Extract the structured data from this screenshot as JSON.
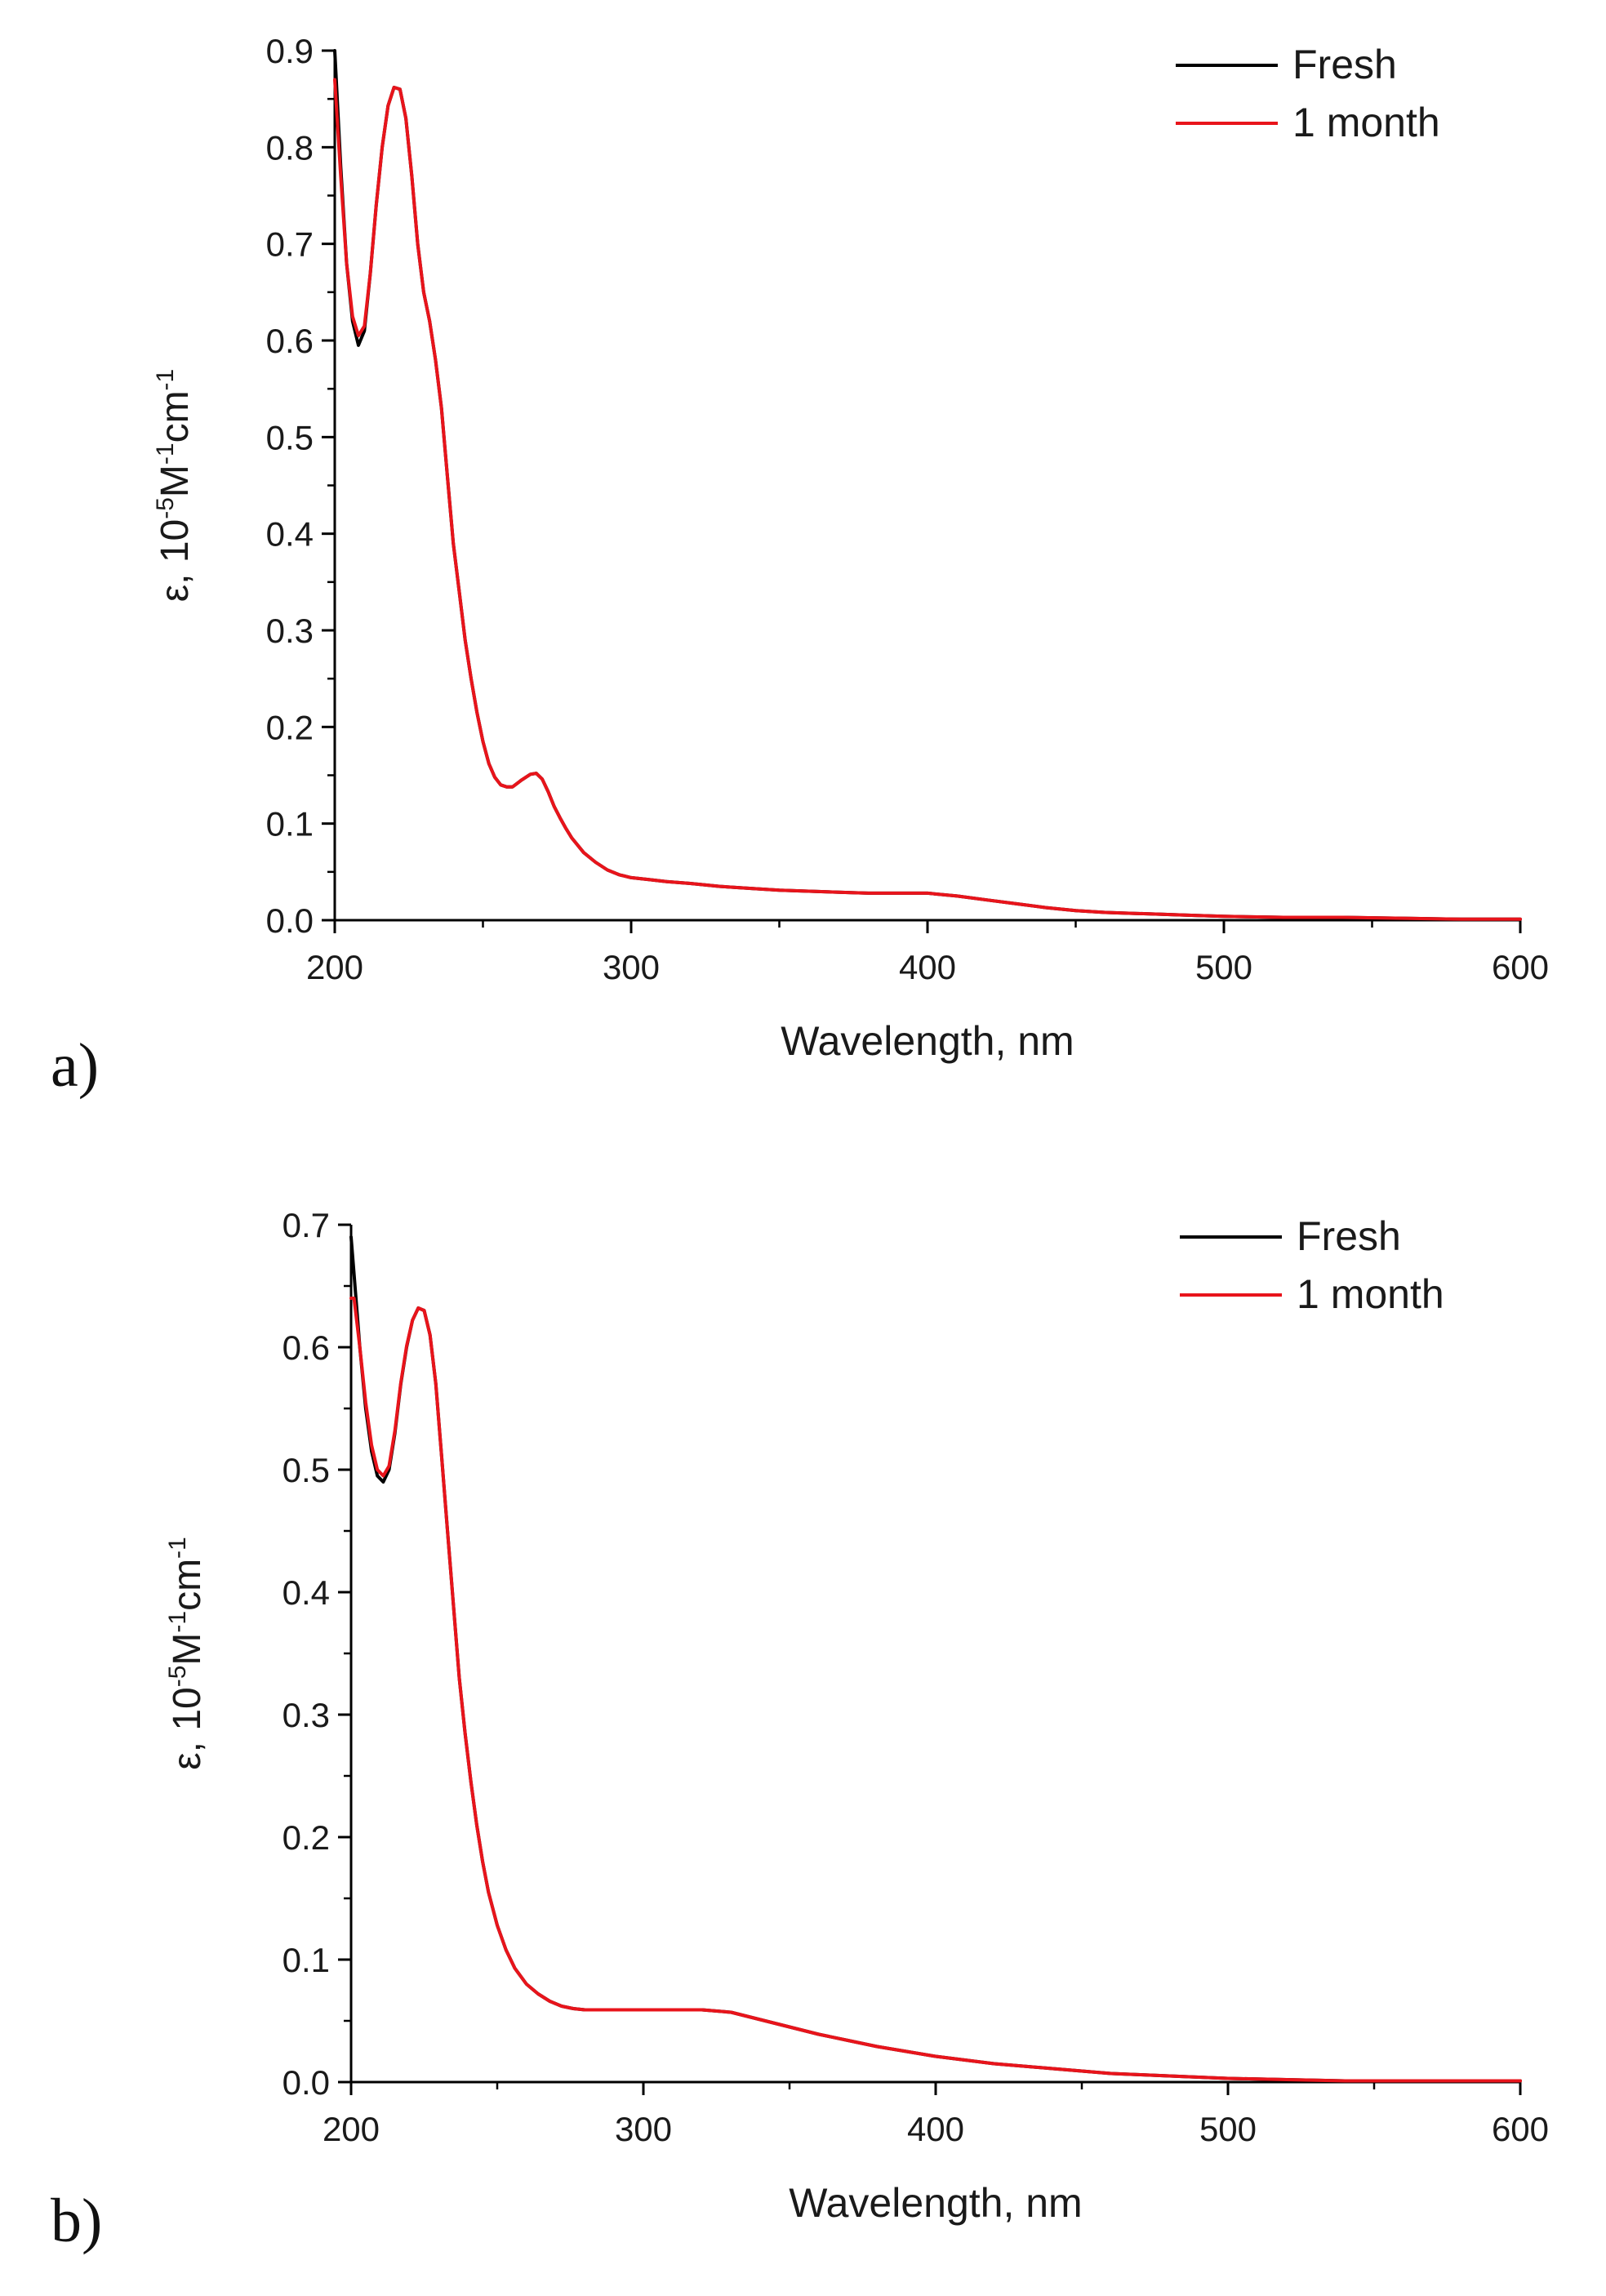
{
  "chart_data": [
    {
      "type": "line",
      "panel_label": "a)",
      "xlabel": "Wavelength, nm",
      "ylabel": {
        "prefix": "ε, 10",
        "exp1": "-5",
        "mid": "M",
        "exp2": "-1",
        "mid2": "cm",
        "exp3": "-1"
      },
      "xlim": [
        200,
        600
      ],
      "ylim": [
        0,
        0.9
      ],
      "xticks": [
        200,
        300,
        400,
        500,
        600
      ],
      "yticks": [
        "0.0",
        "0.1",
        "0.2",
        "0.3",
        "0.4",
        "0.5",
        "0.6",
        "0.7",
        "0.8",
        "0.9"
      ],
      "legend_position": "top-right",
      "series": [
        {
          "name": "Fresh",
          "color": "#000000",
          "x": [
            200,
            202,
            204,
            206,
            208,
            210,
            212,
            214,
            216,
            218,
            220,
            222,
            224,
            226,
            228,
            230,
            232,
            234,
            236,
            238,
            240,
            242,
            244,
            246,
            248,
            250,
            252,
            254,
            256,
            258,
            260,
            263,
            266,
            268,
            270,
            272,
            274,
            276,
            278,
            280,
            284,
            288,
            292,
            296,
            300,
            306,
            312,
            320,
            330,
            340,
            350,
            360,
            370,
            380,
            390,
            400,
            410,
            420,
            430,
            440,
            450,
            460,
            470,
            480,
            490,
            500,
            520,
            540,
            560,
            580,
            600
          ],
          "y": [
            0.9,
            0.78,
            0.68,
            0.62,
            0.595,
            0.61,
            0.67,
            0.74,
            0.8,
            0.843,
            0.862,
            0.86,
            0.83,
            0.77,
            0.7,
            0.65,
            0.62,
            0.58,
            0.53,
            0.46,
            0.39,
            0.34,
            0.29,
            0.25,
            0.215,
            0.185,
            0.162,
            0.148,
            0.14,
            0.138,
            0.138,
            0.145,
            0.151,
            0.152,
            0.146,
            0.133,
            0.118,
            0.106,
            0.095,
            0.085,
            0.07,
            0.06,
            0.052,
            0.047,
            0.044,
            0.042,
            0.04,
            0.038,
            0.035,
            0.033,
            0.031,
            0.03,
            0.029,
            0.028,
            0.028,
            0.028,
            0.025,
            0.021,
            0.017,
            0.013,
            0.01,
            0.008,
            0.007,
            0.006,
            0.005,
            0.004,
            0.003,
            0.003,
            0.002,
            0.001,
            0.001
          ]
        },
        {
          "name": "1 month",
          "color": "#e8141b",
          "x": [
            200,
            202,
            204,
            206,
            208,
            210,
            212,
            214,
            216,
            218,
            220,
            222,
            224,
            226,
            228,
            230,
            232,
            234,
            236,
            238,
            240,
            242,
            244,
            246,
            248,
            250,
            252,
            254,
            256,
            258,
            260,
            263,
            266,
            268,
            270,
            272,
            274,
            276,
            278,
            280,
            284,
            288,
            292,
            296,
            300,
            306,
            312,
            320,
            330,
            340,
            350,
            360,
            370,
            380,
            390,
            400,
            410,
            420,
            430,
            440,
            450,
            460,
            470,
            480,
            490,
            500,
            520,
            540,
            560,
            580,
            600
          ],
          "y": [
            0.87,
            0.77,
            0.68,
            0.625,
            0.605,
            0.615,
            0.67,
            0.74,
            0.8,
            0.843,
            0.862,
            0.86,
            0.83,
            0.77,
            0.7,
            0.65,
            0.62,
            0.58,
            0.53,
            0.46,
            0.39,
            0.34,
            0.29,
            0.25,
            0.215,
            0.185,
            0.162,
            0.148,
            0.14,
            0.138,
            0.138,
            0.145,
            0.151,
            0.152,
            0.146,
            0.133,
            0.118,
            0.106,
            0.095,
            0.085,
            0.07,
            0.06,
            0.052,
            0.047,
            0.044,
            0.042,
            0.04,
            0.038,
            0.035,
            0.033,
            0.031,
            0.03,
            0.029,
            0.028,
            0.028,
            0.028,
            0.025,
            0.021,
            0.017,
            0.013,
            0.01,
            0.008,
            0.007,
            0.006,
            0.005,
            0.004,
            0.003,
            0.003,
            0.002,
            0.001,
            0.001
          ]
        }
      ]
    },
    {
      "type": "line",
      "panel_label": "b)",
      "xlabel": "Wavelength, nm",
      "ylabel": {
        "prefix": "ε, 10",
        "exp1": "-5",
        "mid": "M",
        "exp2": "-1",
        "mid2": "cm",
        "exp3": "-1"
      },
      "xlim": [
        200,
        600
      ],
      "ylim": [
        0,
        0.7
      ],
      "xticks": [
        200,
        300,
        400,
        500,
        600
      ],
      "yticks": [
        "0.0",
        "0.1",
        "0.2",
        "0.3",
        "0.4",
        "0.5",
        "0.6",
        "0.7"
      ],
      "legend_position": "top-right",
      "series": [
        {
          "name": "Fresh",
          "color": "#000000",
          "x": [
            200,
            201,
            203,
            205,
            207,
            209,
            211,
            213,
            215,
            217,
            219,
            221,
            223,
            225,
            227,
            229,
            231,
            233,
            235,
            237,
            239,
            241,
            243,
            245,
            247,
            250,
            253,
            256,
            260,
            264,
            268,
            272,
            276,
            280,
            285,
            290,
            300,
            310,
            320,
            330,
            340,
            350,
            360,
            370,
            380,
            390,
            400,
            410,
            420,
            430,
            440,
            450,
            460,
            470,
            480,
            490,
            500,
            520,
            540,
            560,
            580,
            600
          ],
          "y": [
            0.69,
            0.66,
            0.6,
            0.55,
            0.515,
            0.495,
            0.49,
            0.5,
            0.53,
            0.57,
            0.6,
            0.622,
            0.632,
            0.63,
            0.61,
            0.57,
            0.51,
            0.45,
            0.39,
            0.33,
            0.285,
            0.245,
            0.21,
            0.18,
            0.155,
            0.128,
            0.108,
            0.093,
            0.08,
            0.072,
            0.066,
            0.062,
            0.06,
            0.059,
            0.059,
            0.059,
            0.059,
            0.059,
            0.059,
            0.057,
            0.051,
            0.045,
            0.039,
            0.034,
            0.029,
            0.025,
            0.021,
            0.018,
            0.015,
            0.013,
            0.011,
            0.009,
            0.007,
            0.006,
            0.005,
            0.004,
            0.003,
            0.002,
            0.001,
            0.001,
            0.001,
            0.001
          ]
        },
        {
          "name": "1 month",
          "color": "#e8141b",
          "x": [
            200,
            201,
            203,
            205,
            207,
            209,
            211,
            213,
            215,
            217,
            219,
            221,
            223,
            225,
            227,
            229,
            231,
            233,
            235,
            237,
            239,
            241,
            243,
            245,
            247,
            250,
            253,
            256,
            260,
            264,
            268,
            272,
            276,
            280,
            285,
            290,
            300,
            310,
            320,
            330,
            340,
            350,
            360,
            370,
            380,
            390,
            400,
            410,
            420,
            430,
            440,
            450,
            460,
            470,
            480,
            490,
            500,
            520,
            540,
            560,
            580,
            600
          ],
          "y": [
            0.64,
            0.64,
            0.6,
            0.555,
            0.52,
            0.5,
            0.495,
            0.503,
            0.532,
            0.571,
            0.601,
            0.622,
            0.632,
            0.63,
            0.61,
            0.57,
            0.51,
            0.45,
            0.39,
            0.33,
            0.285,
            0.245,
            0.21,
            0.18,
            0.155,
            0.128,
            0.108,
            0.093,
            0.08,
            0.072,
            0.066,
            0.062,
            0.06,
            0.059,
            0.059,
            0.059,
            0.059,
            0.059,
            0.059,
            0.057,
            0.051,
            0.045,
            0.039,
            0.034,
            0.029,
            0.025,
            0.021,
            0.018,
            0.015,
            0.013,
            0.011,
            0.009,
            0.007,
            0.006,
            0.005,
            0.004,
            0.003,
            0.002,
            0.001,
            0.001,
            0.001,
            0.001
          ]
        }
      ]
    }
  ]
}
